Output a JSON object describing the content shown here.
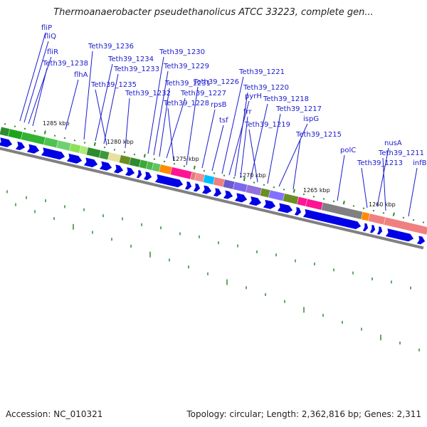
{
  "title": "Thermoanaerobacter pseudethanolicus ATCC 33223, complete gen...",
  "footer": {
    "accession": "Accession: NC_010321",
    "summary": "Topology: circular; Length: 2,362,816 bp; Genes: 2,311"
  },
  "colors": {
    "gene_label": "#1a1acc",
    "leader_line": "#1a1acc",
    "cds_arrow": "#0000e6",
    "tick": "#2d8a2d",
    "backbone": "#808080"
  },
  "kbp_labels": [
    "1285 kbp",
    "1280 kbp",
    "1275 kbp",
    "1270 kbp",
    "1265 kbp",
    "1260 kbp"
  ],
  "gene_labels": [
    "fliP",
    "fliQ",
    "fliR",
    "Teth39_1238",
    "flhA",
    "Teth39_1236",
    "Teth39_1234",
    "Teth39_1233",
    "Teth39_1235",
    "Teth39_1232",
    "Teth39_1230",
    "Teth39_1229",
    "Teth39_1231",
    "Teth39_1227",
    "Teth39_1228",
    "Teth39_1226",
    "rpsB",
    "tsf",
    "Teth39_1221",
    "pyrH",
    "Teth39_1220",
    "frr",
    "Teth39_1218",
    "Teth39_1219",
    "Teth39_1217",
    "ispG",
    "Teth39_1215",
    "polC",
    "nusA",
    "Teth39_1213",
    "Teth39_1211",
    "infB"
  ],
  "feature_colors": [
    "#2e8b2e",
    "#1aa51a",
    "#32b432",
    "#4cc44c",
    "#70d070",
    "#8fde5a",
    "#b2e87a",
    "#2d8c2d",
    "#3a9a3a",
    "#e8e0a0",
    "#6b8e23",
    "#2e8b2e",
    "#3aa83a",
    "#4bb84b",
    "#5ec45e",
    "#ff8c00",
    "#ff1493",
    "#e87878",
    "#f09090",
    "#00bfff",
    "#ef8080",
    "#6a5acd",
    "#7b68ee",
    "#9370db",
    "#6b8e23",
    "#8470ff",
    "#6b8e23",
    "#ff1493",
    "#ff1493",
    "#808080",
    "#ff8c00",
    "#f08080",
    "#f08080"
  ]
}
